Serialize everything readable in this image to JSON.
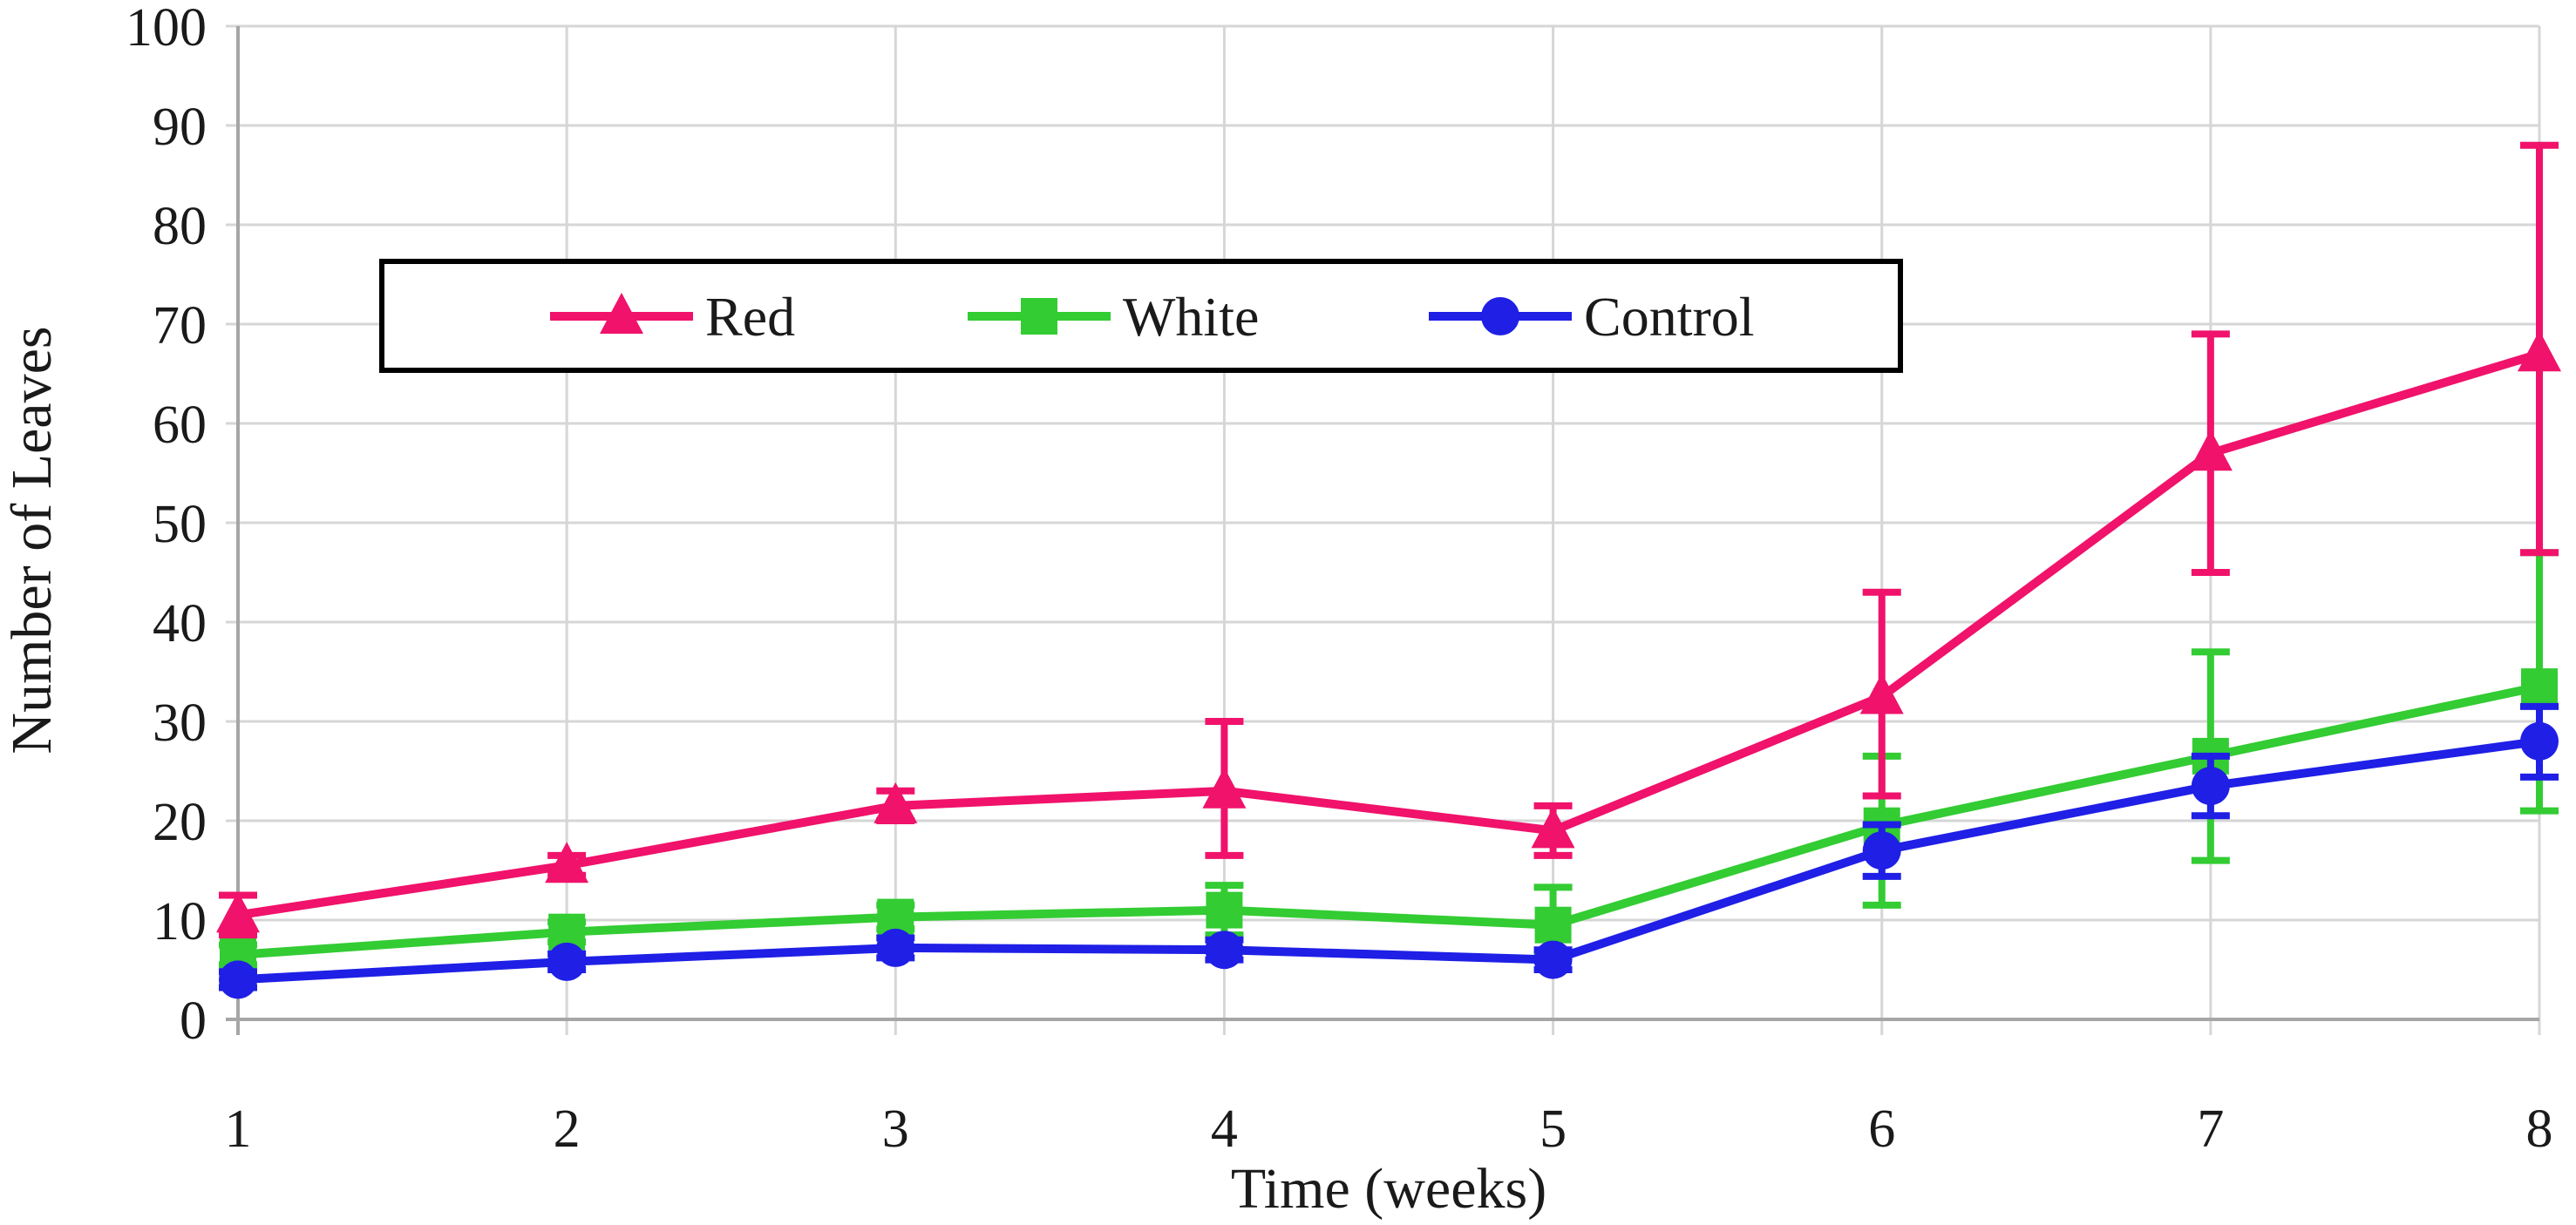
{
  "page": {
    "background": "#ffffff",
    "text_color": "#1a1a1a"
  },
  "chart_data": {
    "type": "line",
    "title": "",
    "xlabel": "Time (weeks)",
    "ylabel": "Number of Leaves",
    "x": [
      1,
      2,
      3,
      4,
      5,
      6,
      7,
      8
    ],
    "x_tick_labels": [
      "1",
      "2",
      "3",
      "4",
      "5",
      "6",
      "7",
      "8"
    ],
    "y_ticks": [
      0,
      10,
      20,
      30,
      40,
      50,
      60,
      70,
      80,
      90,
      100
    ],
    "ylim": [
      0,
      100
    ],
    "xlim": [
      1,
      8
    ],
    "grid": true,
    "gridline_color": "#d6d6d6",
    "axis_color": "#a6a6a6",
    "error_bars": true,
    "legend": {
      "position": "top-left-inside",
      "border_color": "#000000",
      "fill": "#ffffff"
    },
    "series": [
      {
        "name": "Red",
        "color": "#F0126B",
        "marker": "triangle",
        "values": [
          10.5,
          15.5,
          21.5,
          23,
          19,
          32.5,
          57,
          67
        ],
        "error_up": [
          2,
          1,
          1.5,
          7,
          2.5,
          10.5,
          12,
          21
        ],
        "error_down": [
          2,
          1,
          1.5,
          6.5,
          2.5,
          10,
          12,
          20
        ]
      },
      {
        "name": "White",
        "color": "#33CC33",
        "marker": "square",
        "values": [
          6.5,
          8.8,
          10.3,
          11,
          9.5,
          19.5,
          26.5,
          33.5
        ],
        "error_up": [
          1,
          1,
          1.2,
          2.5,
          3.8,
          7,
          10.5,
          13.5
        ],
        "error_down": [
          1,
          1,
          1.2,
          2.5,
          3,
          8,
          10.5,
          12.5
        ]
      },
      {
        "name": "Control",
        "color": "#1F1FE6",
        "marker": "circle",
        "values": [
          4,
          5.8,
          7.2,
          7,
          6,
          17,
          23.5,
          28
        ],
        "error_up": [
          0.8,
          0.8,
          1,
          1,
          1,
          2.6,
          3,
          3.5
        ],
        "error_down": [
          0.8,
          0.8,
          1,
          1,
          1,
          2.6,
          3,
          3.6
        ]
      }
    ]
  },
  "layout_hints": {
    "draw_order": [
      1,
      0,
      2
    ]
  }
}
